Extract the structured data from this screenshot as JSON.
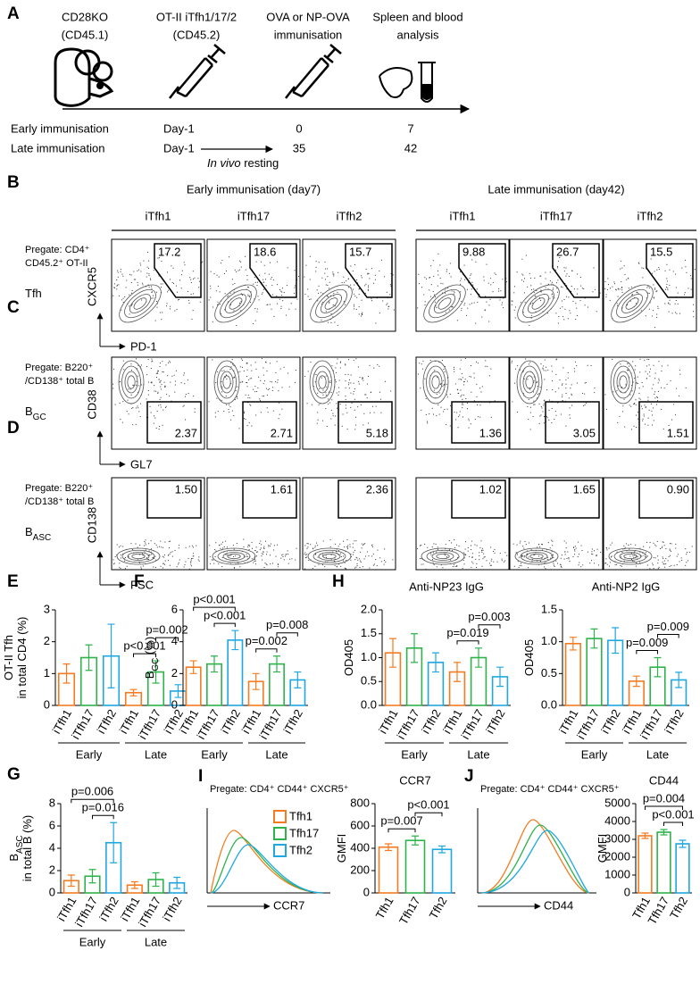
{
  "a": {
    "letter": "A",
    "host": [
      "CD28KO",
      "(CD45.1)"
    ],
    "transfer": [
      "OT-II iTfh1/17/2",
      "(CD45.2)"
    ],
    "immunisation": [
      "OVA or NP-OVA",
      "immunisation"
    ],
    "analysis": [
      "Spleen and blood",
      "analysis"
    ],
    "rows": [
      {
        "name": "Early immunisation",
        "days": [
          "Day-1",
          "0",
          "7"
        ]
      },
      {
        "name": "Late immunisation",
        "days": [
          "Day-1",
          "35",
          "42"
        ]
      }
    ],
    "resting_italic": "In vivo",
    "resting": "resting"
  },
  "flow": {
    "colors": [
      "#f47b20",
      "#2db34a",
      "#1ea7e1"
    ],
    "groups": [
      {
        "title": "Early immunisation (day7)",
        "columns": [
          "iTfh1",
          "iTfh17",
          "iTfh2"
        ]
      },
      {
        "title": "Late immunisation (day42)",
        "columns": [
          "iTfh1",
          "iTfh17",
          "iTfh2"
        ]
      }
    ],
    "rows": [
      {
        "letter": "B",
        "pregate": [
          "Pregate: CD4⁺",
          "CD45.2⁺ OT-II"
        ],
        "name": "Tfh",
        "ylabel": "CXCR5",
        "xlabel": "PD-1",
        "gates": [
          "17.2",
          "18.6",
          "15.7",
          "9.88",
          "26.7",
          "15.5"
        ]
      },
      {
        "letter": "C",
        "pregate": [
          "Pregate: B220⁺",
          "/CD138⁺ total B"
        ],
        "name": "B",
        "name_sub": "GC",
        "ylabel": "CD38",
        "xlabel": "GL7",
        "gates": [
          "2.37",
          "2.71",
          "5.18",
          "1.36",
          "3.05",
          "1.51"
        ]
      },
      {
        "letter": "D",
        "pregate": [
          "Pregate: B220⁺",
          "/CD138⁺ total B"
        ],
        "name": "B",
        "name_sub": "ASC",
        "ylabel": "CD138",
        "xlabel": "FSC",
        "gates": [
          "1.50",
          "1.61",
          "2.36",
          "1.02",
          "1.65",
          "0.90"
        ]
      }
    ]
  },
  "bars": [
    {
      "letter": "E",
      "ylabel": [
        {
          "text": "OT-II  Tfh"
        },
        {
          "text": "in total CD4 (%)"
        }
      ],
      "categories": [
        "iTfh1",
        "iTfh17",
        "iTfh2",
        "iTfh1",
        "iTfh17",
        "iTfh2"
      ],
      "groups": [
        {
          "name": "Early",
          "from": 0,
          "to": 2
        },
        {
          "name": "Late",
          "from": 3,
          "to": 5
        }
      ],
      "colors": [
        "#f47b20",
        "#2db34a",
        "#1ea7e1",
        "#f47b20",
        "#2db34a",
        "#1ea7e1"
      ],
      "values": [
        1.0,
        1.5,
        1.55,
        0.4,
        1.05,
        0.45
      ],
      "errors": [
        0.3,
        0.4,
        1.0,
        0.1,
        0.35,
        0.2
      ],
      "ylim": [
        0,
        3
      ],
      "yticks": [
        0,
        1,
        2,
        3
      ],
      "comparisons": [
        {
          "from": 3,
          "to": 4,
          "label": "p<0.001"
        },
        {
          "from": 4,
          "to": 5,
          "label": "p=0.002"
        }
      ]
    },
    {
      "letter": "F",
      "ylabel": [
        {
          "text": "B",
          "sub": "GC",
          "rest": " (%)"
        }
      ],
      "categories": [
        "iTfh1",
        "iTfh17",
        "iTfh2",
        "iTfh1",
        "iTfh17",
        "iTfh2"
      ],
      "groups": [
        {
          "name": "Early",
          "from": 0,
          "to": 2
        },
        {
          "name": "Late",
          "from": 3,
          "to": 5
        }
      ],
      "colors": [
        "#f47b20",
        "#2db34a",
        "#1ea7e1",
        "#f47b20",
        "#2db34a",
        "#1ea7e1"
      ],
      "values": [
        2.4,
        2.6,
        4.1,
        1.5,
        2.6,
        1.6
      ],
      "errors": [
        0.4,
        0.5,
        0.6,
        0.5,
        0.5,
        0.5
      ],
      "ylim": [
        0,
        6
      ],
      "yticks": [
        0,
        2,
        4,
        6
      ],
      "comparisons": [
        {
          "from": 1,
          "to": 2,
          "label": "p<0.001"
        },
        {
          "from": 0,
          "to": 2,
          "label": "p<0.001"
        },
        {
          "from": 3,
          "to": 4,
          "label": "p=0.002"
        },
        {
          "from": 4,
          "to": 5,
          "label": "p=0.008"
        }
      ]
    },
    {
      "letter": "H",
      "title": "Anti-NP23 IgG",
      "ylabel": [
        {
          "text": "OD405"
        }
      ],
      "categories": [
        "iTfh1",
        "iTfh17",
        "iTfh2",
        "iTfh1",
        "iTfh17",
        "iTfh2"
      ],
      "groups": [
        {
          "name": "Early",
          "from": 0,
          "to": 2
        },
        {
          "name": "Late",
          "from": 3,
          "to": 5
        }
      ],
      "colors": [
        "#f47b20",
        "#2db34a",
        "#1ea7e1",
        "#f47b20",
        "#2db34a",
        "#1ea7e1"
      ],
      "values": [
        1.1,
        1.2,
        0.9,
        0.7,
        1.0,
        0.6
      ],
      "errors": [
        0.3,
        0.3,
        0.2,
        0.2,
        0.2,
        0.2
      ],
      "ylim": [
        0,
        2
      ],
      "yticks": [
        {
          "value": 0,
          "label": "0.0"
        },
        0.5,
        {
          "value": 1,
          "label": "1.0"
        },
        1.5,
        {
          "value": 2,
          "label": "2.0"
        }
      ],
      "comparisons": [
        {
          "from": 3,
          "to": 4,
          "label": "p=0.019"
        },
        {
          "from": 4,
          "to": 5,
          "label": "p=0.003"
        }
      ]
    },
    {
      "title": "Anti-NP2 IgG",
      "ylabel": [
        {
          "text": "OD405"
        }
      ],
      "categories": [
        "iTfh1",
        "iTfh17",
        "iTfh2",
        "iTfh1",
        "iTfh17",
        "iTfh2"
      ],
      "groups": [
        {
          "name": "Early",
          "from": 0,
          "to": 2
        },
        {
          "name": "Late",
          "from": 3,
          "to": 5
        }
      ],
      "colors": [
        "#f47b20",
        "#2db34a",
        "#1ea7e1",
        "#f47b20",
        "#2db34a",
        "#1ea7e1"
      ],
      "values": [
        0.97,
        1.05,
        1.02,
        0.38,
        0.6,
        0.4
      ],
      "errors": [
        0.1,
        0.15,
        0.2,
        0.08,
        0.15,
        0.12
      ],
      "ylim": [
        0,
        1.5
      ],
      "yticks": [
        {
          "value": 0,
          "label": "0.0"
        },
        0.5,
        {
          "value": 1,
          "label": "1.0"
        },
        1.5
      ],
      "comparisons": [
        {
          "from": 3,
          "to": 4,
          "label": "p=0.009"
        },
        {
          "from": 4,
          "to": 5,
          "label": "p=0.009"
        }
      ]
    },
    {
      "letter": "G",
      "ylabel": [
        {
          "text": "B",
          "sub": "ASC"
        },
        {
          "text": "in total B (%)"
        }
      ],
      "categories": [
        "iTfh1",
        "iTfh17",
        "iTfh2",
        "iTfh1",
        "iTfh17",
        "iTfh2"
      ],
      "groups": [
        {
          "name": "Early",
          "from": 0,
          "to": 2
        },
        {
          "name": "Late",
          "from": 3,
          "to": 5
        }
      ],
      "colors": [
        "#f47b20",
        "#2db34a",
        "#1ea7e1",
        "#f47b20",
        "#2db34a",
        "#1ea7e1"
      ],
      "values": [
        1.1,
        1.5,
        4.5,
        0.7,
        1.2,
        0.9
      ],
      "errors": [
        0.5,
        0.6,
        1.8,
        0.3,
        0.6,
        0.5
      ],
      "ylim": [
        0,
        8
      ],
      "yticks": [
        0,
        2,
        4,
        6,
        8
      ],
      "comparisons": [
        {
          "from": 1,
          "to": 2,
          "label": "p=0.016"
        },
        {
          "from": 0,
          "to": 2,
          "label": "p=0.006"
        }
      ]
    },
    {
      "title": "CCR7",
      "ylabel": [
        {
          "text": "GMFI"
        }
      ],
      "categories": [
        "Tfh1",
        "Tfh17",
        "Tfh2"
      ],
      "colors": [
        "#f47b20",
        "#2db34a",
        "#1ea7e1"
      ],
      "values": [
        410,
        470,
        390
      ],
      "errors": [
        30,
        40,
        30
      ],
      "ylim": [
        0,
        800
      ],
      "yticks": [
        0,
        200,
        400,
        600,
        800
      ],
      "comparisons": [
        {
          "from": 0,
          "to": 1,
          "label": "p=0.007"
        },
        {
          "from": 1,
          "to": 2,
          "label": "p<0.001"
        }
      ]
    },
    {
      "title": "CD44",
      "ylabel": [
        {
          "text": "GMFI"
        }
      ],
      "categories": [
        "Tfh1",
        "Tfh17",
        "Tfh2"
      ],
      "colors": [
        "#f47b20",
        "#2db34a",
        "#1ea7e1"
      ],
      "values": [
        3200,
        3400,
        2750
      ],
      "errors": [
        150,
        150,
        200
      ],
      "ylim": [
        0,
        5000
      ],
      "yticks": [
        0,
        1000,
        2000,
        3000,
        4000,
        5000
      ],
      "comparisons": [
        {
          "from": 1,
          "to": 2,
          "label": "p<0.001"
        },
        {
          "from": 0,
          "to": 2,
          "label": "p=0.004"
        }
      ]
    }
  ],
  "hist": [
    {
      "letter": "I",
      "pregate": "Pregate: CD4⁺ CD44⁺ CXCR5⁺",
      "xlabel": "CCR7",
      "legend": [
        "Tfh1",
        "Tfh17",
        "Tfh2"
      ],
      "colors": [
        "#f47b20",
        "#2db34a",
        "#1ea7e1"
      ]
    },
    {
      "letter": "J",
      "pregate": "Pregate: CD4⁺ CD44⁺ CXCR5⁺",
      "xlabel": "CD44",
      "colors": [
        "#f47b20",
        "#2db34a",
        "#1ea7e1"
      ]
    }
  ]
}
